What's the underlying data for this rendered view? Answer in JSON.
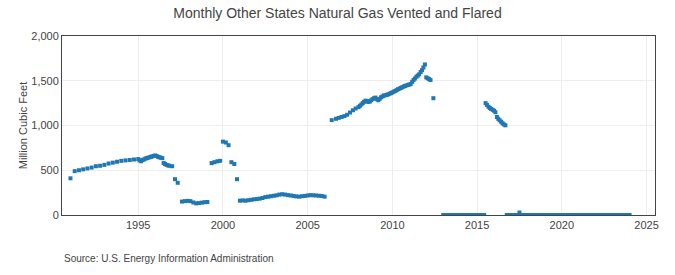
{
  "chart_data": {
    "type": "scatter",
    "title": "Monthly Other States Natural Gas Vented and Flared",
    "y_label": "Million Cubic Feet",
    "annotations": [
      "Source: U.S. Energy Information Administration"
    ],
    "marker": "square",
    "grid": true,
    "xlim": [
      1990.5,
      2025.5
    ],
    "xticks": [
      1995,
      2000,
      2005,
      2010,
      2015,
      2020,
      2025
    ],
    "ylim": [
      0,
      2000
    ],
    "yticks": [
      0,
      500,
      {
        "value": 1000,
        "label": "1,000"
      },
      {
        "value": 1500,
        "label": "1,500"
      },
      {
        "value": 2000,
        "label": "2,000"
      }
    ],
    "x": [
      1991.0,
      1991.25,
      1991.5,
      1991.75,
      1992.0,
      1992.25,
      1992.5,
      1992.75,
      1993.0,
      1993.25,
      1993.5,
      1993.75,
      1994.0,
      1994.25,
      1994.5,
      1994.75,
      1995.0,
      1995.08,
      1995.17,
      1995.25,
      1995.33,
      1995.42,
      1995.5,
      1995.58,
      1995.67,
      1995.75,
      1995.83,
      1995.92,
      1996.0,
      1996.08,
      1996.17,
      1996.25,
      1996.33,
      1996.42,
      1996.5,
      1996.58,
      1996.67,
      1996.75,
      1996.83,
      1997.0,
      1997.17,
      1997.33,
      1997.58,
      1997.75,
      1997.92,
      1998.08,
      1998.25,
      1998.42,
      1998.58,
      1998.75,
      1998.92,
      1999.08,
      1999.33,
      1999.5,
      1999.67,
      1999.83,
      2000.0,
      2000.17,
      2000.33,
      2000.5,
      2000.67,
      2000.83,
      2001.0,
      2001.17,
      2001.33,
      2001.5,
      2001.67,
      2001.83,
      2002.0,
      2002.17,
      2002.33,
      2002.5,
      2002.67,
      2002.83,
      2003.0,
      2003.17,
      2003.33,
      2003.5,
      2003.67,
      2003.83,
      2004.0,
      2004.17,
      2004.33,
      2004.5,
      2004.67,
      2004.83,
      2005.0,
      2005.17,
      2005.33,
      2005.5,
      2005.67,
      2005.83,
      2006.0,
      2006.42,
      2006.67,
      2006.83,
      2007.0,
      2007.17,
      2007.33,
      2007.5,
      2007.67,
      2007.83,
      2008.0,
      2008.08,
      2008.17,
      2008.25,
      2008.33,
      2008.42,
      2008.5,
      2008.58,
      2008.67,
      2008.75,
      2008.83,
      2008.92,
      2009.0,
      2009.08,
      2009.17,
      2009.25,
      2009.33,
      2009.42,
      2009.5,
      2009.58,
      2009.67,
      2009.75,
      2009.83,
      2009.92,
      2010.0,
      2010.08,
      2010.17,
      2010.25,
      2010.33,
      2010.42,
      2010.5,
      2010.58,
      2010.67,
      2010.75,
      2010.83,
      2010.92,
      2011.0,
      2011.08,
      2011.17,
      2011.25,
      2011.33,
      2011.42,
      2011.5,
      2011.58,
      2011.67,
      2011.75,
      2011.83,
      2011.92,
      2012.0,
      2012.08,
      2012.17,
      2012.25,
      2012.42,
      2013.0,
      2013.08,
      2013.17,
      2013.25,
      2013.33,
      2013.42,
      2013.5,
      2013.58,
      2013.67,
      2013.75,
      2013.83,
      2013.92,
      2014.0,
      2014.08,
      2014.17,
      2014.25,
      2014.33,
      2014.42,
      2014.5,
      2014.58,
      2014.67,
      2014.75,
      2014.83,
      2014.92,
      2015.0,
      2015.08,
      2015.17,
      2015.25,
      2015.33,
      2015.42,
      2015.5,
      2015.58,
      2015.67,
      2015.75,
      2015.83,
      2015.92,
      2016.0,
      2016.08,
      2016.17,
      2016.25,
      2016.33,
      2016.42,
      2016.5,
      2016.58,
      2016.67,
      2016.75,
      2016.83,
      2016.92,
      2017.0,
      2017.08,
      2017.17,
      2017.25,
      2017.33,
      2017.42,
      2017.5,
      2017.58,
      2017.67,
      2017.75,
      2017.83,
      2017.92,
      2018.0,
      2018.08,
      2018.17,
      2018.25,
      2018.33,
      2018.42,
      2018.5,
      2018.58,
      2018.67,
      2018.75,
      2018.83,
      2018.92,
      2019.0,
      2019.08,
      2019.17,
      2019.25,
      2019.33,
      2019.42,
      2019.5,
      2019.58,
      2019.67,
      2019.75,
      2019.83,
      2019.92,
      2020.0,
      2020.08,
      2020.17,
      2020.25,
      2020.33,
      2020.42,
      2020.5,
      2020.58,
      2020.67,
      2020.75,
      2020.83,
      2020.92,
      2021.0,
      2021.08,
      2021.17,
      2021.25,
      2021.33,
      2021.42,
      2021.5,
      2021.58,
      2021.67,
      2021.75,
      2021.83,
      2021.92,
      2022.0,
      2022.08,
      2022.17,
      2022.25,
      2022.33,
      2022.42,
      2022.5,
      2022.58,
      2022.67,
      2022.75,
      2022.83,
      2022.92,
      2023.0,
      2023.08,
      2023.17,
      2023.25,
      2023.33,
      2023.42,
      2023.5,
      2023.58,
      2023.67,
      2023.75,
      2023.83,
      2023.92,
      2024.0
    ],
    "values": [
      410,
      490,
      500,
      510,
      520,
      530,
      545,
      550,
      560,
      575,
      585,
      595,
      605,
      610,
      615,
      620,
      625,
      610,
      600,
      615,
      620,
      630,
      635,
      640,
      645,
      650,
      655,
      660,
      665,
      660,
      650,
      645,
      640,
      635,
      580,
      570,
      560,
      555,
      550,
      545,
      400,
      360,
      150,
      155,
      158,
      155,
      140,
      130,
      133,
      138,
      143,
      145,
      580,
      590,
      600,
      605,
      820,
      810,
      780,
      590,
      570,
      400,
      160,
      163,
      160,
      165,
      170,
      175,
      178,
      183,
      190,
      200,
      205,
      210,
      215,
      220,
      228,
      232,
      228,
      222,
      218,
      213,
      208,
      205,
      210,
      213,
      218,
      222,
      220,
      218,
      215,
      212,
      205,
      1060,
      1075,
      1085,
      1095,
      1105,
      1120,
      1145,
      1170,
      1190,
      1205,
      1220,
      1235,
      1250,
      1265,
      1278,
      1272,
      1263,
      1268,
      1282,
      1295,
      1305,
      1312,
      1295,
      1282,
      1298,
      1315,
      1325,
      1335,
      1338,
      1342,
      1348,
      1355,
      1362,
      1370,
      1378,
      1386,
      1395,
      1405,
      1412,
      1420,
      1428,
      1435,
      1442,
      1448,
      1453,
      1458,
      1463,
      1488,
      1508,
      1525,
      1545,
      1558,
      1572,
      1598,
      1618,
      1648,
      1682,
      1538,
      1528,
      1518,
      1508,
      1305,
      0,
      0,
      0,
      0,
      0,
      0,
      0,
      0,
      0,
      0,
      0,
      0,
      0,
      0,
      0,
      0,
      0,
      0,
      0,
      0,
      0,
      0,
      0,
      0,
      0,
      0,
      0,
      0,
      0,
      0,
      1250,
      1230,
      1210,
      1195,
      1185,
      1175,
      1165,
      1148,
      1095,
      1075,
      1058,
      1042,
      1025,
      1012,
      1002,
      0,
      0,
      0,
      0,
      0,
      0,
      0,
      0,
      0,
      28,
      0,
      0,
      0,
      0,
      0,
      0,
      0,
      0,
      0,
      0,
      0,
      0,
      0,
      0,
      0,
      0,
      0,
      0,
      0,
      0,
      0,
      0,
      0,
      0,
      0,
      0,
      0,
      0,
      0,
      0,
      0,
      0,
      0,
      0,
      0,
      0,
      0,
      0,
      0,
      0,
      0,
      0,
      0,
      0,
      0,
      0,
      0,
      0,
      0,
      0,
      0,
      0,
      0,
      0,
      0,
      0,
      0,
      0,
      0,
      0,
      0,
      0,
      0,
      0,
      0,
      0,
      0,
      0,
      0,
      0,
      0,
      0,
      0,
      0,
      0,
      0,
      0,
      0
    ]
  }
}
